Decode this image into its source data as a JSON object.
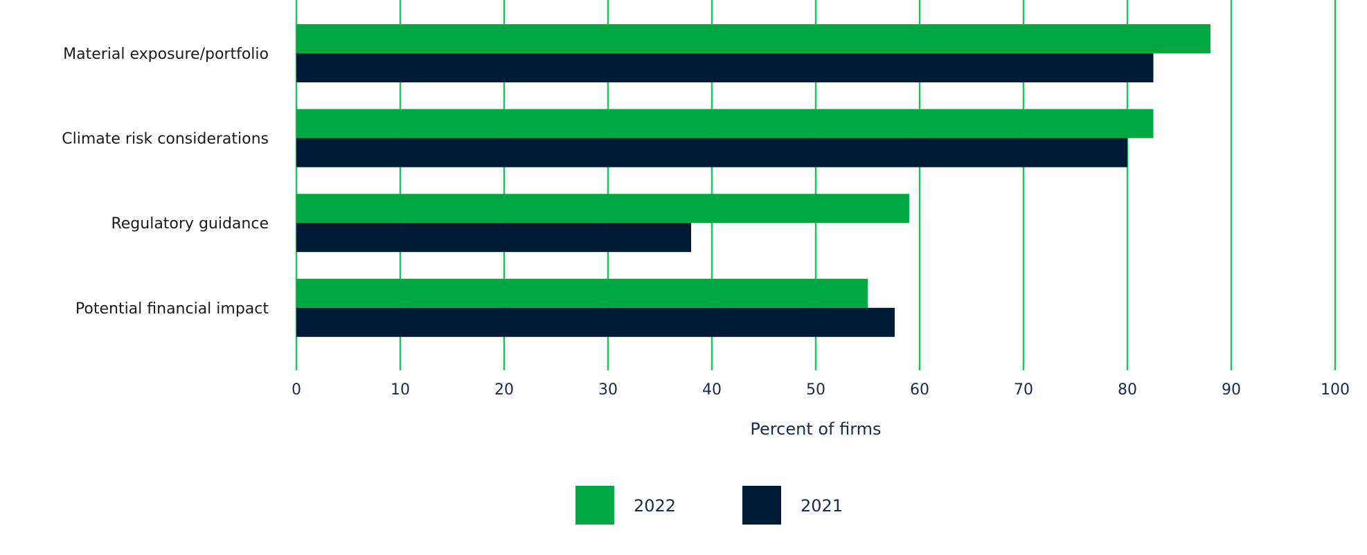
{
  "chart_data": {
    "type": "bar",
    "orientation": "horizontal",
    "title": "",
    "xlabel": "Percent of firms",
    "ylabel": "",
    "xlim": [
      0,
      100
    ],
    "xticks": [
      0,
      10,
      20,
      30,
      40,
      50,
      60,
      70,
      80,
      90,
      100
    ],
    "grid": true,
    "legend_position": "bottom-center",
    "categories": [
      "Material exposure/portfolio",
      "Climate risk considerations",
      "Regulatory guidance",
      "Potential financial impact"
    ],
    "series": [
      {
        "name": "2022",
        "color": "#00A843",
        "values": [
          88,
          82.5,
          59,
          55
        ]
      },
      {
        "name": "2021",
        "color": "#001B36",
        "values": [
          82.5,
          80,
          38,
          57.6
        ]
      }
    ],
    "gridline_color": "#1DC45E"
  }
}
